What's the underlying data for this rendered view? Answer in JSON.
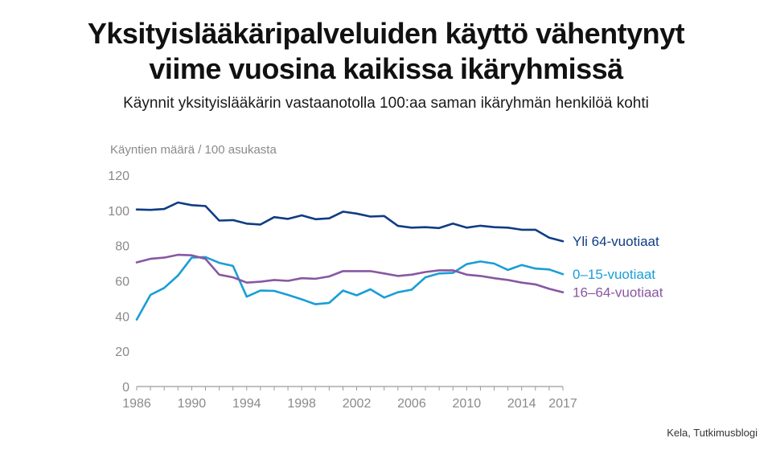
{
  "title": {
    "line1": "Yksityislääkäripalveluiden käyttö vähentynyt",
    "line2": "viime vuosina kaikissa ikäryhmissä"
  },
  "subtitle": "Käynnit yksityislääkärin vastaanotolla 100:aa saman ikäryhmän henkilöä kohti",
  "source": "Kela, Tutkimusblogi",
  "chart_data": {
    "type": "line",
    "ylabel": "Käyntien määrä / 100 asukasta",
    "xlabel": "",
    "xlim": [
      1986,
      2017
    ],
    "ylim": [
      0,
      120
    ],
    "grid": false,
    "legend": "inline labels at right end of each line",
    "x_ticks": [
      "1986",
      "1990",
      "1994",
      "1998",
      "2002",
      "2006",
      "2010",
      "2014",
      "2017"
    ],
    "y_ticks": [
      "0",
      "20",
      "40",
      "60",
      "80",
      "100",
      "120"
    ],
    "x": [
      1986,
      1987,
      1988,
      1989,
      1990,
      1991,
      1992,
      1993,
      1994,
      1995,
      1996,
      1997,
      1998,
      1999,
      2000,
      2001,
      2002,
      2003,
      2004,
      2005,
      2006,
      2007,
      2008,
      2009,
      2010,
      2011,
      2012,
      2013,
      2014,
      2015,
      2016,
      2017
    ],
    "series": [
      {
        "name": "Yli 64-vuotiaat",
        "color": "#0f3c84",
        "values": [
          100.5,
          100.3,
          100.8,
          104.5,
          103,
          102.5,
          94.2,
          94.5,
          92.5,
          92,
          96.2,
          95.2,
          97.2,
          95,
          95.5,
          99.3,
          98.2,
          96.5,
          96.8,
          91.2,
          90.2,
          90.5,
          90,
          92.5,
          90.2,
          91.3,
          90.5,
          90.2,
          89,
          89,
          84.5,
          82.5
        ]
      },
      {
        "name": "0–15-vuotiaat",
        "color": "#199ed6",
        "values": [
          38,
          52,
          56,
          63,
          73.2,
          73.5,
          70.2,
          68.5,
          51,
          54.5,
          54.3,
          52,
          49.5,
          46.7,
          47.5,
          54.5,
          51.8,
          55.2,
          50.5,
          53.5,
          55,
          62,
          64.2,
          64.5,
          69.5,
          71,
          69.8,
          66.2,
          69,
          67,
          66.5,
          63.8
        ]
      },
      {
        "name": "16–64-vuotiaat",
        "color": "#8857a2",
        "values": [
          70.5,
          72.5,
          73.2,
          74.8,
          74.5,
          72.5,
          63.5,
          62,
          59,
          59.5,
          60.5,
          60,
          61.5,
          61.2,
          62.5,
          65.5,
          65.5,
          65.5,
          64.2,
          62.8,
          63.5,
          65,
          66,
          66,
          63.5,
          62.8,
          61.5,
          60.5,
          59,
          58,
          55.5,
          53.5
        ]
      }
    ]
  }
}
